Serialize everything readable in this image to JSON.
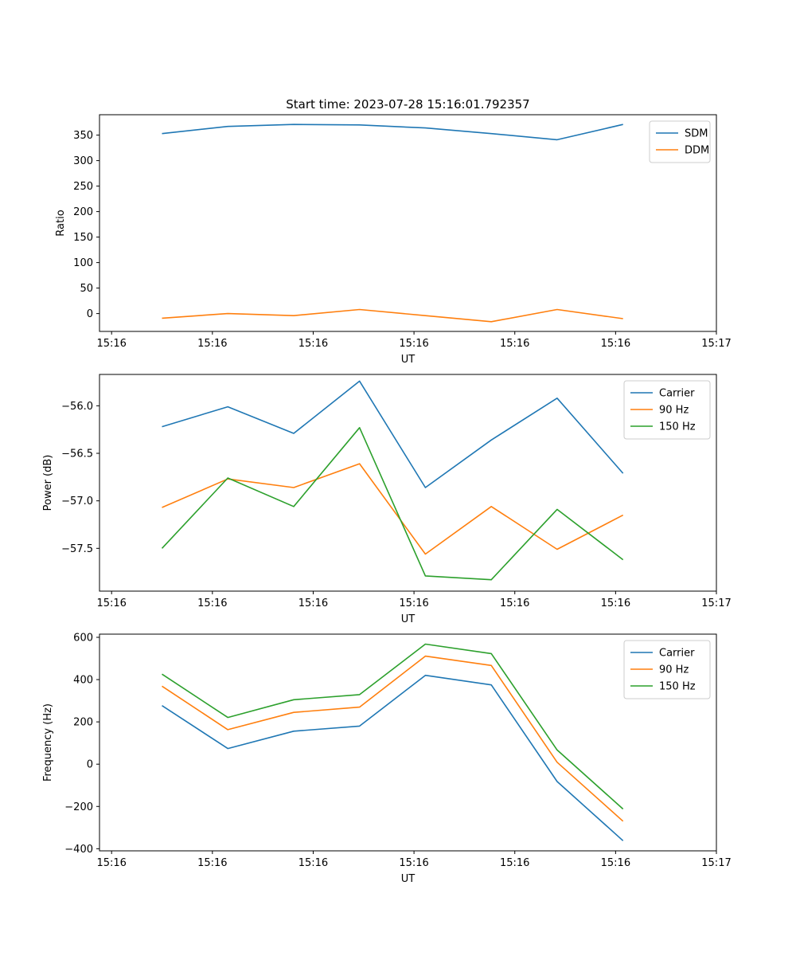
{
  "chart_data": [
    {
      "type": "line",
      "title": "Start time: 2023-07-28 15:16:01.792357",
      "xlabel": "UT",
      "ylabel": "Ratio",
      "xlim": [
        -0.18,
        9.0
      ],
      "x_ticks": [
        0,
        1.5,
        3,
        4.5,
        6,
        7.5,
        9
      ],
      "x_tick_labels": [
        "15:16",
        "15:16",
        "15:16",
        "15:16",
        "15:16",
        "15:16",
        "15:17"
      ],
      "ylim": [
        -35,
        390
      ],
      "y_ticks": [
        0,
        50,
        100,
        150,
        200,
        250,
        300,
        350
      ],
      "y_tick_labels": [
        "0",
        "50",
        "100",
        "150",
        "200",
        "250",
        "300",
        "350"
      ],
      "x": [
        0.75,
        1.73,
        2.71,
        3.69,
        4.67,
        5.65,
        6.63,
        7.61
      ],
      "series": [
        {
          "name": "SDM",
          "color": "#1f77b4",
          "values": [
            353,
            367,
            371,
            370,
            364,
            353,
            341,
            371
          ]
        },
        {
          "name": "DDM",
          "color": "#ff7f0e",
          "values": [
            -9,
            0,
            -4,
            8,
            -4,
            -16,
            8,
            -10
          ]
        }
      ],
      "legend": "top-right"
    },
    {
      "type": "line",
      "title": "",
      "xlabel": "UT",
      "ylabel": "Power (dB)",
      "xlim": [
        -0.18,
        9.0
      ],
      "x_ticks": [
        0,
        1.5,
        3,
        4.5,
        6,
        7.5,
        9
      ],
      "x_tick_labels": [
        "15:16",
        "15:16",
        "15:16",
        "15:16",
        "15:16",
        "15:16",
        "15:17"
      ],
      "ylim": [
        -57.95,
        -55.67
      ],
      "y_ticks": [
        -57.5,
        -57.0,
        -56.5,
        -56.0
      ],
      "y_tick_labels": [
        "−57.5",
        "−57.0",
        "−56.5",
        "−56.0"
      ],
      "x": [
        0.75,
        1.73,
        2.71,
        3.69,
        4.67,
        5.65,
        6.63,
        7.61
      ],
      "series": [
        {
          "name": "Carrier",
          "color": "#1f77b4",
          "values": [
            -56.22,
            -56.01,
            -56.29,
            -55.74,
            -56.86,
            -56.36,
            -55.92,
            -56.71
          ]
        },
        {
          "name": "90 Hz",
          "color": "#ff7f0e",
          "values": [
            -57.07,
            -56.77,
            -56.86,
            -56.61,
            -57.56,
            -57.06,
            -57.51,
            -57.15
          ]
        },
        {
          "name": "150 Hz",
          "color": "#2ca02c",
          "values": [
            -57.5,
            -56.76,
            -57.06,
            -56.23,
            -57.79,
            -57.83,
            -57.09,
            -57.62
          ]
        }
      ],
      "legend": "top-right"
    },
    {
      "type": "line",
      "title": "",
      "xlabel": "UT",
      "ylabel": "Frequency (Hz)",
      "xlim": [
        -0.18,
        9.0
      ],
      "x_ticks": [
        0,
        1.5,
        3,
        4.5,
        6,
        7.5,
        9
      ],
      "x_tick_labels": [
        "15:16",
        "15:16",
        "15:16",
        "15:16",
        "15:16",
        "15:16",
        "15:17"
      ],
      "ylim": [
        -410,
        615
      ],
      "y_ticks": [
        -400,
        -200,
        0,
        200,
        400,
        600
      ],
      "y_tick_labels": [
        "−400",
        "−200",
        "0",
        "200",
        "400",
        "600"
      ],
      "x": [
        0.75,
        1.73,
        2.71,
        3.69,
        4.67,
        5.65,
        6.63,
        7.61
      ],
      "series": [
        {
          "name": "Carrier",
          "color": "#1f77b4",
          "values": [
            277,
            74,
            156,
            180,
            420,
            375,
            -82,
            -362
          ]
        },
        {
          "name": "90 Hz",
          "color": "#ff7f0e",
          "values": [
            369,
            163,
            245,
            270,
            511,
            467,
            9,
            -270
          ]
        },
        {
          "name": "150 Hz",
          "color": "#2ca02c",
          "values": [
            426,
            221,
            305,
            329,
            568,
            523,
            67,
            -212
          ]
        }
      ],
      "legend": "top-right"
    }
  ]
}
